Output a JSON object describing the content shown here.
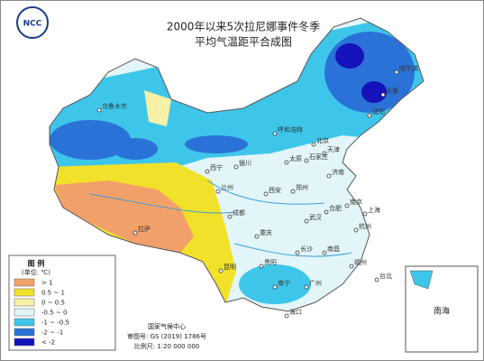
{
  "header": {
    "logo": "NCC",
    "title_line1": "2000年以来5次拉尼娜事件冬季",
    "title_line2": "平均气温距平合成图"
  },
  "legend": {
    "title": "图  例",
    "unit": "(单位: ℃)",
    "items": [
      {
        "label": "> 1",
        "color": "#f2a06a"
      },
      {
        "label": "0.5 ~ 1",
        "color": "#f2e12a"
      },
      {
        "label": "0 ~ 0.5",
        "color": "#f8f0a6"
      },
      {
        "label": "-0.5 ~ 0",
        "color": "#e2f5f9"
      },
      {
        "label": "-1 ~ -0.5",
        "color": "#3ec6ea"
      },
      {
        "label": "-2 ~ -1",
        "color": "#2a72d8"
      },
      {
        "label": "< -2",
        "color": "#1412b8"
      }
    ]
  },
  "footer": {
    "agency": "国家气候中心",
    "approval": "审图号: GS (2019) 1786号",
    "scale": "比例尺: 1:20 000 000"
  },
  "cities": [
    "哈尔滨",
    "长春",
    "沈阳",
    "呼和浩特",
    "北京",
    "天津",
    "石家庄",
    "太原",
    "济南",
    "银川",
    "西宁",
    "兰州",
    "西安",
    "郑州",
    "南京",
    "合肥",
    "上海",
    "武汉",
    "杭州",
    "成都",
    "重庆",
    "长沙",
    "南昌",
    "福州",
    "贵阳",
    "昆明",
    "南宁",
    "广州",
    "台北",
    "海口",
    "拉萨",
    "乌鲁木齐"
  ],
  "inset": {
    "label": "南海"
  }
}
